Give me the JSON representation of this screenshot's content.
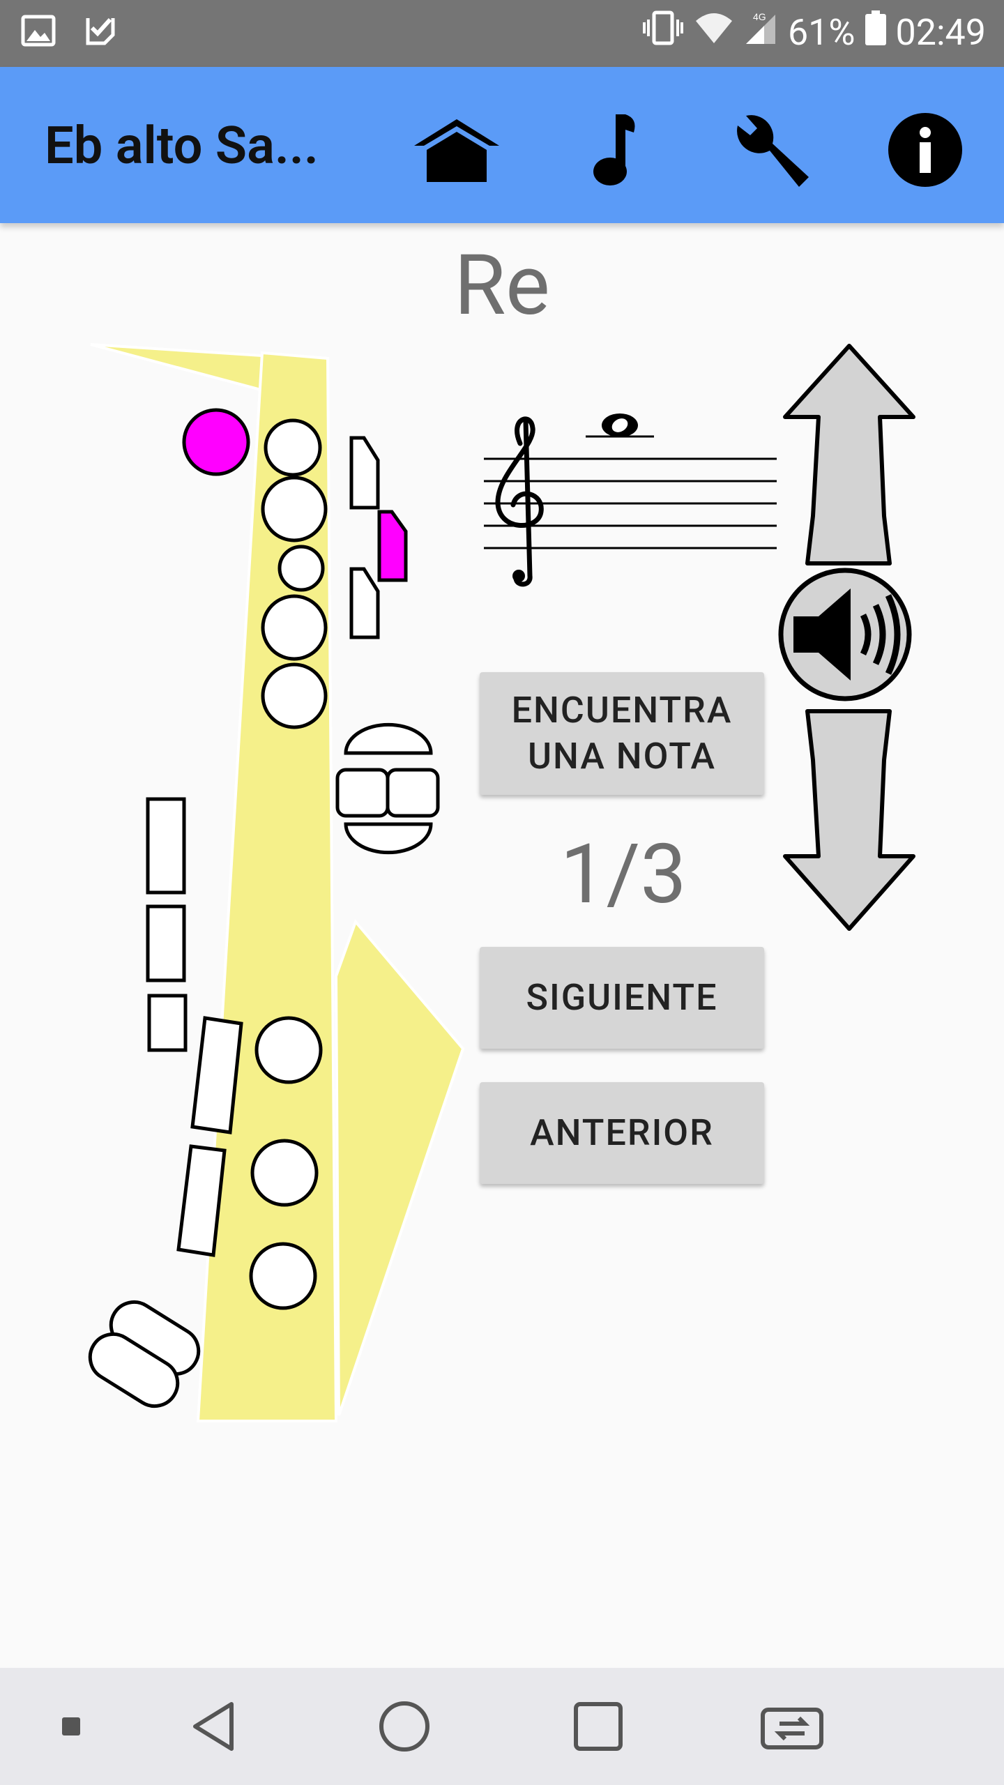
{
  "status_bar": {
    "battery": "61%",
    "time": "02:49",
    "network": "4G"
  },
  "app_bar": {
    "title": "Eb alto Sa..."
  },
  "note": {
    "name": "Re"
  },
  "buttons": {
    "find_note_line1": "ENCUENTRA",
    "find_note_line2": "UNA NOTA",
    "next": "SIGUIENTE",
    "previous": "ANTERIOR"
  },
  "counter": "1/3",
  "colors": {
    "app_bar": "#5b9bf7",
    "pressed_key": "#ff00ff",
    "body": "#f5f08a"
  }
}
